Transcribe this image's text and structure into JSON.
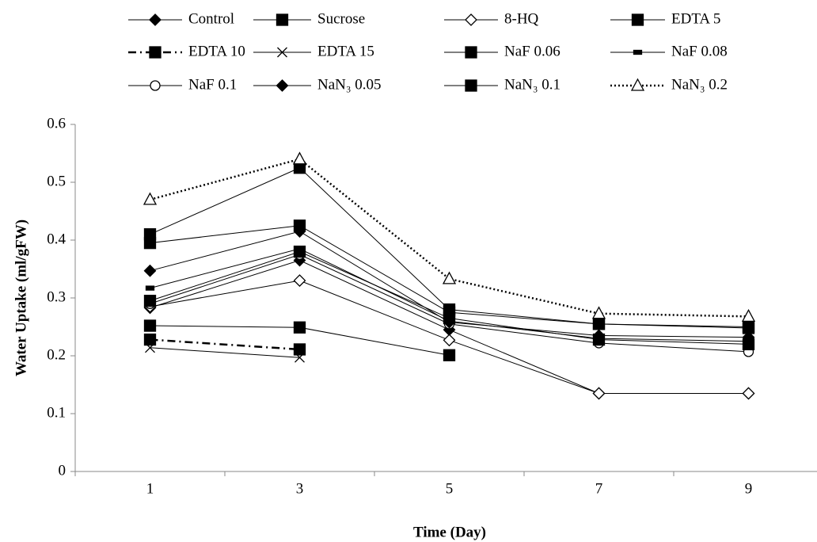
{
  "chart_data": {
    "type": "line",
    "x_label": "Time (Day)",
    "y_label": "Water Uptake (ml/gFW)",
    "categories": [
      "1",
      "3",
      "5",
      "7",
      "9"
    ],
    "ylim": [
      0,
      0.6
    ],
    "yticks": [
      0,
      0.1,
      0.2,
      0.3,
      0.4,
      0.5,
      0.6
    ],
    "grid": false,
    "legend": "top",
    "series": [
      {
        "name": "Control",
        "color": "#000000",
        "marker": "diamond",
        "filled": true,
        "dash": "solid",
        "values": [
          0.283,
          0.365,
          0.245,
          0.135,
          0.135
        ]
      },
      {
        "name": "Sucrose",
        "color": "#000000",
        "marker": "square",
        "filled": true,
        "dash": "solid",
        "values": [
          0.41,
          0.525,
          0.28,
          0.255,
          0.25
        ]
      },
      {
        "name": "8-HQ",
        "color": "#000000",
        "marker": "diamond",
        "filled": false,
        "dash": "solid",
        "values": [
          0.285,
          0.33,
          0.227,
          0.135,
          0.135
        ]
      },
      {
        "name": "EDTA 5",
        "color": "#000000",
        "marker": "square",
        "filled": true,
        "dash": "solid",
        "values": [
          0.252,
          0.249,
          0.201,
          null,
          null
        ]
      },
      {
        "name": "EDTA 10",
        "color": "#000000",
        "marker": "square",
        "filled": true,
        "dash": "dashdot",
        "values": [
          0.228,
          0.211,
          null,
          null,
          null
        ]
      },
      {
        "name": "EDTA 15",
        "color": "#000000",
        "marker": "x",
        "filled": false,
        "dash": "solid",
        "values": [
          0.214,
          0.197,
          null,
          null,
          null
        ]
      },
      {
        "name": "NaF 0.06",
        "color": "#000000",
        "marker": "square",
        "filled": true,
        "dash": "solid",
        "values": [
          0.395,
          0.425,
          0.275,
          0.255,
          0.248
        ]
      },
      {
        "name": "NaF 0.08",
        "color": "#000000",
        "marker": "dash",
        "filled": true,
        "dash": "solid",
        "values": [
          0.317,
          0.385,
          0.26,
          0.23,
          0.225
        ]
      },
      {
        "name": "NaF 0.1",
        "color": "#000000",
        "marker": "circle",
        "filled": false,
        "dash": "solid",
        "values": [
          0.29,
          0.375,
          0.255,
          0.222,
          0.207
        ]
      },
      {
        "name": "NaN₃ 0.05",
        "color": "#000000",
        "marker": "diamond",
        "filled": true,
        "dash": "solid",
        "values": [
          0.347,
          0.415,
          0.258,
          0.235,
          0.232
        ]
      },
      {
        "name": "NaN₃ 0.1",
        "color": "#000000",
        "marker": "square",
        "filled": true,
        "dash": "solid",
        "values": [
          0.295,
          0.38,
          0.265,
          0.228,
          0.22
        ]
      },
      {
        "name": "NaN₃ 0.2",
        "color": "#000000",
        "marker": "triangle",
        "filled": false,
        "dash": "dotted",
        "values": [
          0.47,
          0.54,
          0.333,
          0.273,
          0.268
        ]
      }
    ]
  }
}
